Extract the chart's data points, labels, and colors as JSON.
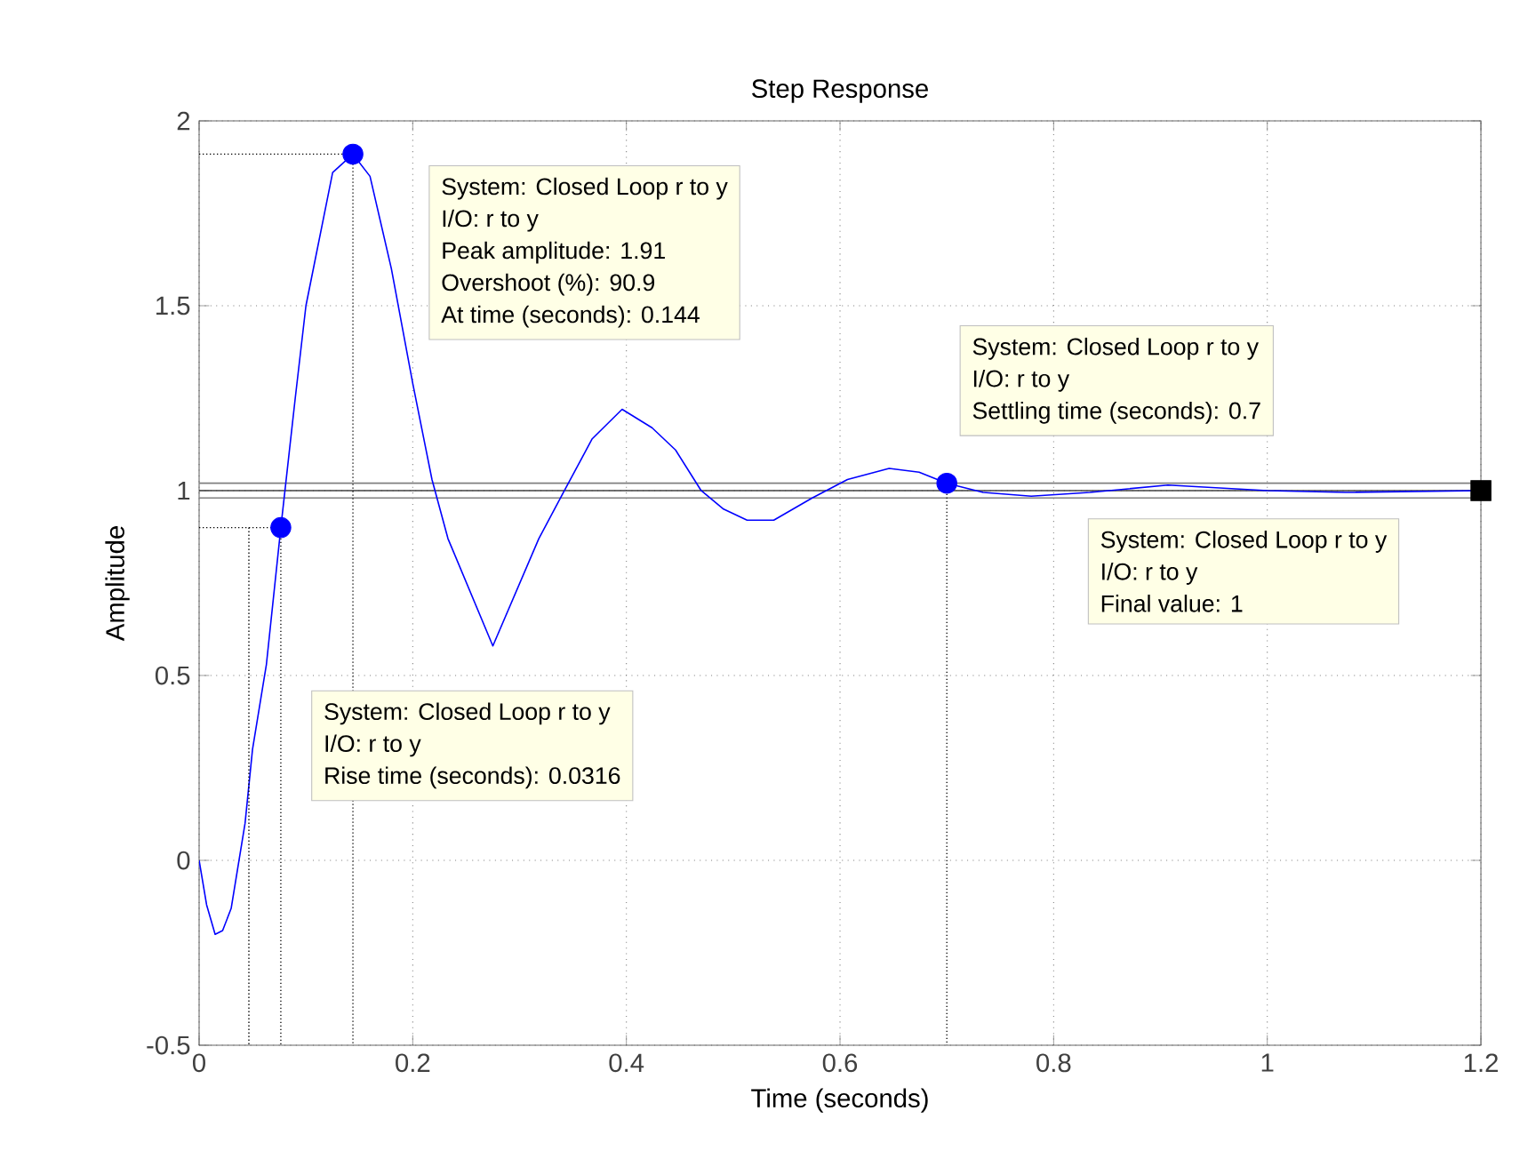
{
  "chart_data": {
    "type": "line",
    "title": "Step Response",
    "xlabel": "Time (seconds)",
    "ylabel": "Amplitude",
    "xlim": [
      0,
      1.2
    ],
    "ylim": [
      -0.5,
      2
    ],
    "xticks": [
      0,
      0.2,
      0.4,
      0.6,
      0.8,
      1,
      1.2
    ],
    "yticks": [
      -0.5,
      0,
      0.5,
      1,
      1.5,
      2
    ],
    "grid": true,
    "series": [
      {
        "color": "#0000ff",
        "marker": "none",
        "line_style": "solid",
        "x": [
          0,
          0.007,
          0.015,
          0.022,
          0.03,
          0.043,
          0.05,
          0.063,
          0.0765,
          0.09,
          0.1,
          0.125,
          0.144,
          0.16,
          0.18,
          0.2,
          0.218,
          0.233,
          0.275,
          0.318,
          0.341,
          0.368,
          0.396,
          0.424,
          0.446,
          0.47,
          0.491,
          0.513,
          0.538,
          0.574,
          0.607,
          0.646,
          0.674,
          0.7,
          0.734,
          0.779,
          0.834,
          0.907,
          1.0,
          1.073,
          1.2
        ],
        "values": [
          0,
          -0.12,
          -0.2,
          -0.19,
          -0.13,
          0.1,
          0.3,
          0.53,
          0.9,
          1.25,
          1.5,
          1.86,
          1.91,
          1.85,
          1.6,
          1.29,
          1.03,
          0.87,
          0.58,
          0.87,
          0.995,
          1.14,
          1.22,
          1.17,
          1.11,
          1.0,
          0.95,
          0.92,
          0.92,
          0.98,
          1.03,
          1.06,
          1.05,
          1.02,
          0.995,
          0.985,
          0.995,
          1.015,
          1.0,
          0.995,
          1.0
        ]
      },
      {
        "type": "line",
        "color": "#000000",
        "marker": "none",
        "line_style": "dotted",
        "x": [
          0,
          0.144,
          0.144
        ],
        "values": [
          1.91,
          1.91,
          -0.5
        ]
      },
      {
        "type": "line",
        "color": "#000000",
        "marker": "none",
        "line_style": "dotted",
        "x": [
          0,
          0.0765,
          0.0765
        ],
        "values": [
          0.9,
          0.9,
          -0.5
        ]
      },
      {
        "type": "line",
        "color": "#000000",
        "marker": "none",
        "line_style": "dotted",
        "x": [
          0.0466,
          0.0466
        ],
        "values": [
          0.9,
          -0.5
        ]
      },
      {
        "type": "line",
        "color": "#000000",
        "marker": "none",
        "line_style": "dotted",
        "x": [
          0.7,
          0.7
        ],
        "values": [
          1.02,
          -0.5
        ]
      },
      {
        "type": "scatter",
        "color": "#0000ff",
        "marker": "circle",
        "x": [
          0.0765,
          0.144,
          0.7
        ],
        "values": [
          0.9,
          1.91,
          1.02
        ]
      },
      {
        "type": "scatter",
        "color": "#000000",
        "marker": "square",
        "x": [
          1.2
        ],
        "values": [
          1
        ]
      }
    ],
    "ref_lines": [
      {
        "axis": "y",
        "value": 0.98,
        "color": "#808080"
      },
      {
        "axis": "y",
        "value": 1.02,
        "color": "#808080"
      },
      {
        "axis": "y",
        "value": 1,
        "color": "#404040"
      }
    ],
    "annotations": [
      "System: Closed Loop r to y",
      "I/O: r to y",
      "Peak amplitude: 1.91",
      "Overshoot (%): 90.9",
      "At time (seconds): 0.144",
      "System: Closed Loop r to y",
      "I/O: r to y",
      "Rise time (seconds): 0.0316",
      "System: Closed Loop r to y",
      "I/O: r to y",
      "Settling time (seconds): 0.7",
      "System: Closed Loop r to y",
      "I/O: r to y",
      "Final value: 1"
    ]
  }
}
